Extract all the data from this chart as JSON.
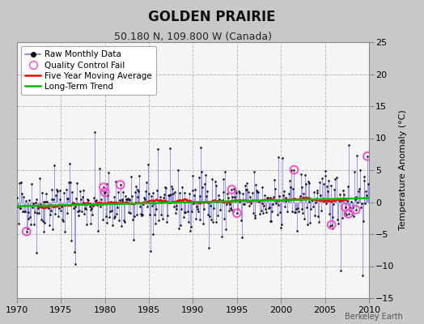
{
  "title": "GOLDEN PRAIRIE",
  "subtitle": "50.180 N, 109.800 W (Canada)",
  "ylabel": "Temperature Anomaly (°C)",
  "watermark": "Berkeley Earth",
  "xlim": [
    1970,
    2010
  ],
  "ylim": [
    -15,
    25
  ],
  "yticks": [
    -15,
    -10,
    -5,
    0,
    5,
    10,
    15,
    20,
    25
  ],
  "xticks": [
    1970,
    1975,
    1980,
    1985,
    1990,
    1995,
    2000,
    2005,
    2010
  ],
  "fig_bg_color": "#c8c8c8",
  "plot_bg_color": "#f5f5f5",
  "raw_line_color": "#6666ff",
  "stem_color": "#7777ee",
  "dot_color": "#111111",
  "ma_color": "#ff0000",
  "trend_color": "#00bb00",
  "qc_color": "#ff44cc",
  "title_fontsize": 12,
  "subtitle_fontsize": 9,
  "tick_fontsize": 8,
  "ylabel_fontsize": 8,
  "legend_fontsize": 7.5,
  "seed": 42
}
